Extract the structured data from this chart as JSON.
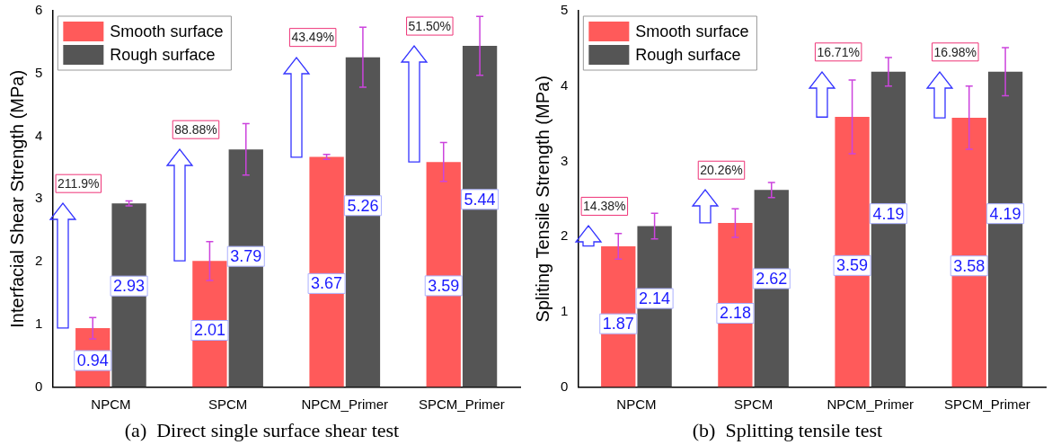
{
  "chart_data": [
    {
      "type": "bar",
      "title": "(a)  Direct single surface shear test",
      "ylabel": "Interfacial Shear Strength (MPa)",
      "categories": [
        "NPCM",
        "SPCM",
        "NPCM_Primer",
        "SPCM_Primer"
      ],
      "series": [
        {
          "name": "Smooth surface",
          "color": "#ff5a5a",
          "values": [
            0.94,
            2.01,
            3.67,
            3.59
          ],
          "errors": [
            0.17,
            0.31,
            0.04,
            0.31
          ]
        },
        {
          "name": "Rough surface",
          "color": "#555555",
          "values": [
            2.93,
            3.79,
            5.26,
            5.44
          ],
          "errors": [
            0.04,
            0.41,
            0.48,
            0.47
          ]
        }
      ],
      "ylim": [
        0,
        6
      ],
      "yticks": [
        0,
        1,
        2,
        3,
        4,
        5,
        6
      ],
      "grid": false,
      "legend": "top left",
      "data_labels": true,
      "annotations": [
        {
          "text": "211.9%",
          "x": "NPCM",
          "y": 2.93
        },
        {
          "text": "88.88%",
          "x": "SPCM",
          "y": 3.79
        },
        {
          "text": "43.49%",
          "x": "NPCM_Primer",
          "y": 5.26
        },
        {
          "text": "51.50%",
          "x": "SPCM_Primer",
          "y": 5.44
        }
      ]
    },
    {
      "type": "bar",
      "title": "(b)  Splitting tensile test",
      "ylabel": "Spliting Tensile Strength (MPa)",
      "categories": [
        "NPCM",
        "SPCM",
        "NPCM_Primer",
        "SPCM_Primer"
      ],
      "series": [
        {
          "name": "Smooth surface",
          "color": "#ff5a5a",
          "values": [
            1.87,
            2.18,
            3.59,
            3.58
          ],
          "errors": [
            0.17,
            0.19,
            0.49,
            0.42
          ]
        },
        {
          "name": "Rough surface",
          "color": "#555555",
          "values": [
            2.14,
            2.62,
            4.19,
            4.19
          ],
          "errors": [
            0.17,
            0.1,
            0.19,
            0.32
          ]
        }
      ],
      "ylim": [
        0,
        5
      ],
      "yticks": [
        0,
        1,
        2,
        3,
        4,
        5
      ],
      "grid": false,
      "legend": "top left",
      "data_labels": true,
      "annotations": [
        {
          "text": "14.38%",
          "x": "NPCM",
          "y": 2.14
        },
        {
          "text": "20.26%",
          "x": "SPCM",
          "y": 2.62
        },
        {
          "text": "16.71%",
          "x": "NPCM_Primer",
          "y": 4.19
        },
        {
          "text": "16.98%",
          "x": "SPCM_Primer",
          "y": 4.19
        }
      ]
    }
  ]
}
